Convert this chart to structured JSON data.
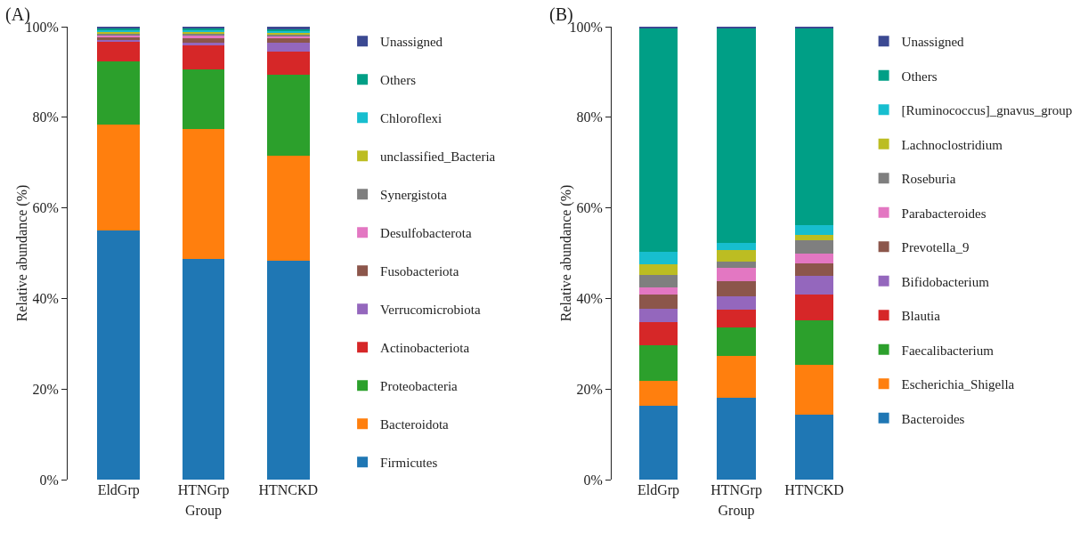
{
  "chart_data": [
    {
      "type": "bar",
      "stacked": true,
      "title": "(A)",
      "xlabel": "Group",
      "ylabel": "Relative abundance (%)",
      "categories": [
        "EldGrp",
        "HTNGrp",
        "HTNCKD"
      ],
      "ylim": [
        0,
        100
      ],
      "yticks": [
        {
          "value": 0,
          "label": "0%"
        },
        {
          "value": 20,
          "label": "20%"
        },
        {
          "value": 40,
          "label": "40%"
        },
        {
          "value": 60,
          "label": "60%"
        },
        {
          "value": 80,
          "label": "80%"
        },
        {
          "value": 100,
          "label": "100%"
        }
      ],
      "grid": false,
      "legend": "right",
      "series": [
        {
          "name": "Firmicutes",
          "color": "#1f77b4",
          "values": [
            55.0,
            48.7,
            48.3
          ]
        },
        {
          "name": "Bacteroidota",
          "color": "#ff7f0e",
          "values": [
            23.4,
            28.8,
            23.3
          ]
        },
        {
          "name": "Proteobacteria",
          "color": "#2ca02c",
          "values": [
            14.0,
            13.1,
            17.8
          ]
        },
        {
          "name": "Actinobacteriota",
          "color": "#d62728",
          "values": [
            4.2,
            5.3,
            5.1
          ]
        },
        {
          "name": "Verrucomicrobiota",
          "color": "#9467bd",
          "values": [
            0.4,
            0.6,
            2.0
          ]
        },
        {
          "name": "Fusobacteriota",
          "color": "#8c564b",
          "values": [
            0.6,
            0.9,
            1.0
          ]
        },
        {
          "name": "Desulfobacterota",
          "color": "#e377c2",
          "values": [
            0.4,
            0.6,
            0.4
          ]
        },
        {
          "name": "Synergistota",
          "color": "#7f7f7f",
          "values": [
            0.4,
            0.4,
            0.4
          ]
        },
        {
          "name": "unclassified_Bacteria",
          "color": "#bcbd22",
          "values": [
            0.4,
            0.4,
            0.4
          ]
        },
        {
          "name": "Chloroflexi",
          "color": "#17becf",
          "values": [
            0.4,
            0.4,
            0.4
          ]
        },
        {
          "name": "Others",
          "color": "#009f86",
          "values": [
            0.4,
            0.4,
            0.4
          ]
        },
        {
          "name": "Unassigned",
          "color": "#3b4992",
          "values": [
            0.4,
            0.4,
            0.5
          ]
        }
      ]
    },
    {
      "type": "bar",
      "stacked": true,
      "title": "(B)",
      "xlabel": "Group",
      "ylabel": "Relative abundance (%)",
      "categories": [
        "EldGrp",
        "HTNGrp",
        "HTNCKD"
      ],
      "ylim": [
        0,
        100
      ],
      "yticks": [
        {
          "value": 0,
          "label": "0%"
        },
        {
          "value": 20,
          "label": "20%"
        },
        {
          "value": 40,
          "label": "40%"
        },
        {
          "value": 60,
          "label": "60%"
        },
        {
          "value": 80,
          "label": "80%"
        },
        {
          "value": 100,
          "label": "100%"
        }
      ],
      "grid": false,
      "legend": "right",
      "series": [
        {
          "name": "Bacteroides",
          "color": "#1f77b4",
          "values": [
            16.3,
            18.1,
            14.3
          ]
        },
        {
          "name": "Escherichia_Shigella",
          "color": "#ff7f0e",
          "values": [
            5.6,
            9.2,
            11.0
          ]
        },
        {
          "name": "Faecalibacterium",
          "color": "#2ca02c",
          "values": [
            7.8,
            6.2,
            9.9
          ]
        },
        {
          "name": "Blautia",
          "color": "#d62728",
          "values": [
            5.0,
            4.0,
            5.6
          ]
        },
        {
          "name": "Bifidobacterium",
          "color": "#9467bd",
          "values": [
            3.0,
            2.9,
            4.2
          ]
        },
        {
          "name": "Prevotella_9",
          "color": "#8c564b",
          "values": [
            3.2,
            3.4,
            2.8
          ]
        },
        {
          "name": "Parabacteroides",
          "color": "#e377c2",
          "values": [
            1.6,
            2.9,
            2.2
          ]
        },
        {
          "name": "Roseburia",
          "color": "#7f7f7f",
          "values": [
            2.7,
            1.4,
            2.9
          ]
        },
        {
          "name": "Lachnoclostridium",
          "color": "#bcbd22",
          "values": [
            2.4,
            2.6,
            1.2
          ]
        },
        {
          "name": "[Ruminococcus]_gnavus_group",
          "color": "#17becf",
          "values": [
            2.6,
            1.6,
            2.1
          ]
        },
        {
          "name": "Others",
          "color": "#009f86",
          "values": [
            49.5,
            47.4,
            43.4
          ]
        },
        {
          "name": "Unassigned",
          "color": "#3b4992",
          "values": [
            0.3,
            0.3,
            0.4
          ]
        }
      ]
    }
  ]
}
